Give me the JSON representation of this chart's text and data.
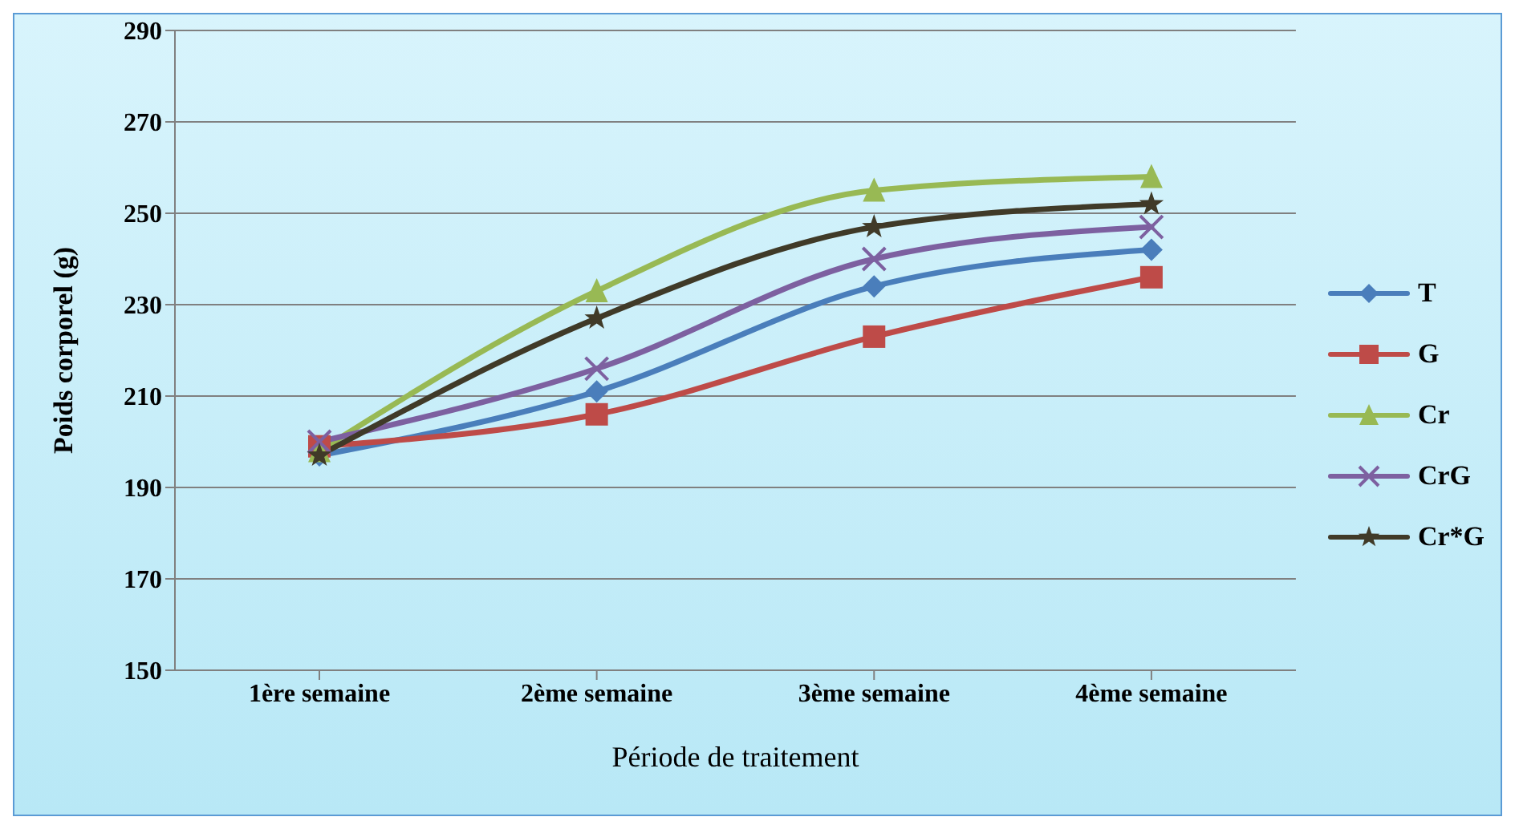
{
  "chart_data": {
    "type": "line",
    "xlabel": "Période de traitement",
    "ylabel": "Poids corporel (g)",
    "categories": [
      "1ère semaine",
      "2ème semaine",
      "3ème semaine",
      "4ème semaine"
    ],
    "series": [
      {
        "name": "T",
        "color": "#4a7ebb",
        "marker": "diamond",
        "values": [
          197,
          211,
          234,
          242
        ]
      },
      {
        "name": "G",
        "color": "#be4b48",
        "marker": "square",
        "values": [
          199,
          206,
          223,
          236
        ]
      },
      {
        "name": "Cr",
        "color": "#98b954",
        "marker": "triangle",
        "values": [
          198,
          233,
          255,
          258
        ]
      },
      {
        "name": "CrG",
        "color": "#7d60a0",
        "marker": "cross",
        "values": [
          200,
          216,
          240,
          247
        ]
      },
      {
        "name": "Cr*G",
        "color": "#403a28",
        "marker": "star",
        "values": [
          197,
          227,
          247,
          252
        ]
      }
    ],
    "ylim": [
      150,
      290
    ],
    "yticks": [
      150,
      170,
      190,
      210,
      230,
      250,
      270,
      290
    ],
    "grid": "y",
    "legend": "right"
  }
}
